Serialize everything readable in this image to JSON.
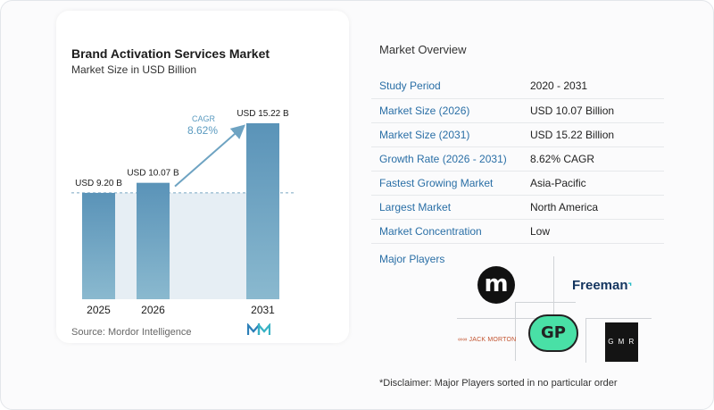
{
  "chart_data": {
    "type": "bar",
    "title": "Brand Activation Services Market",
    "subtitle": "Market Size in USD Billion",
    "categories": [
      "2025",
      "2026",
      "2031"
    ],
    "values": [
      9.2,
      10.07,
      15.22
    ],
    "value_labels": [
      "USD 9.20 B",
      "USD 10.07 B",
      "USD 15.22 B"
    ],
    "cagr_label": "CAGR",
    "cagr_value": "8.62%",
    "ylim": [
      0,
      15.22
    ],
    "colors": {
      "bar_top": "#5a93b8",
      "bar_bottom": "#8ab9cf",
      "band": "#e6eef4",
      "arrow": "#6ea3c2",
      "cagr_text": "#5b9bc0",
      "dashed": "#7aa7c2"
    }
  },
  "source": "Source: Mordor Intelligence",
  "overview": {
    "title": "Market Overview",
    "rows": [
      {
        "key": "Study Period",
        "value": "2020 - 2031"
      },
      {
        "key": "Market Size (2026)",
        "value": "USD 10.07 Billion"
      },
      {
        "key": "Market Size (2031)",
        "value": "USD 15.22 Billion"
      },
      {
        "key": "Growth Rate (2026 - 2031)",
        "value": "8.62% CAGR"
      },
      {
        "key": "Fastest Growing Market",
        "value": "Asia-Pacific"
      },
      {
        "key": "Largest Market",
        "value": "North America"
      },
      {
        "key": "Market Concentration",
        "value": "Low"
      }
    ]
  },
  "players": {
    "title": "Major Players",
    "logos": {
      "m": "m",
      "freeman": "Freeman",
      "jack_morton": "JACK MORTON",
      "gp": "GP",
      "gmr": "G M R"
    }
  },
  "disclaimer": "*Disclaimer: Major Players sorted in no particular order"
}
